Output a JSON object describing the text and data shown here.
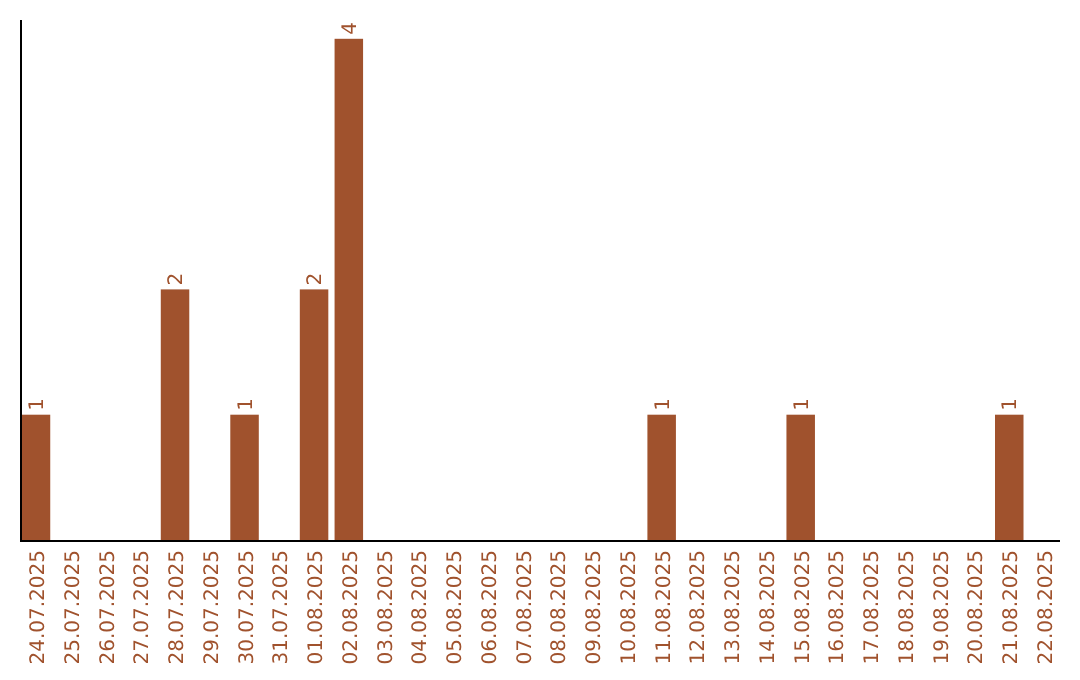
{
  "chart_data": {
    "type": "bar",
    "categories": [
      "24.07.2025",
      "25.07.2025",
      "26.07.2025",
      "27.07.2025",
      "28.07.2025",
      "29.07.2025",
      "30.07.2025",
      "31.07.2025",
      "01.08.2025",
      "02.08.2025",
      "03.08.2025",
      "04.08.2025",
      "05.08.2025",
      "06.08.2025",
      "07.08.2025",
      "08.08.2025",
      "09.08.2025",
      "10.08.2025",
      "11.08.2025",
      "12.08.2025",
      "13.08.2025",
      "14.08.2025",
      "15.08.2025",
      "16.08.2025",
      "17.08.2025",
      "18.08.2025",
      "19.08.2025",
      "20.08.2025",
      "21.08.2025",
      "22.08.2025"
    ],
    "values": [
      1,
      0,
      0,
      0,
      2,
      0,
      1,
      0,
      2,
      4,
      0,
      0,
      0,
      0,
      0,
      0,
      0,
      0,
      1,
      0,
      0,
      0,
      1,
      0,
      0,
      0,
      0,
      0,
      1,
      0
    ],
    "value_labels": [
      "1",
      null,
      null,
      null,
      "2",
      null,
      "1",
      null,
      "2",
      "4",
      null,
      null,
      null,
      null,
      null,
      null,
      null,
      null,
      "1",
      null,
      null,
      null,
      "1",
      null,
      null,
      null,
      null,
      null,
      "1",
      null
    ],
    "color": "#a0522d",
    "ylim": [
      0,
      4.15
    ],
    "tick_labels": "x"
  }
}
